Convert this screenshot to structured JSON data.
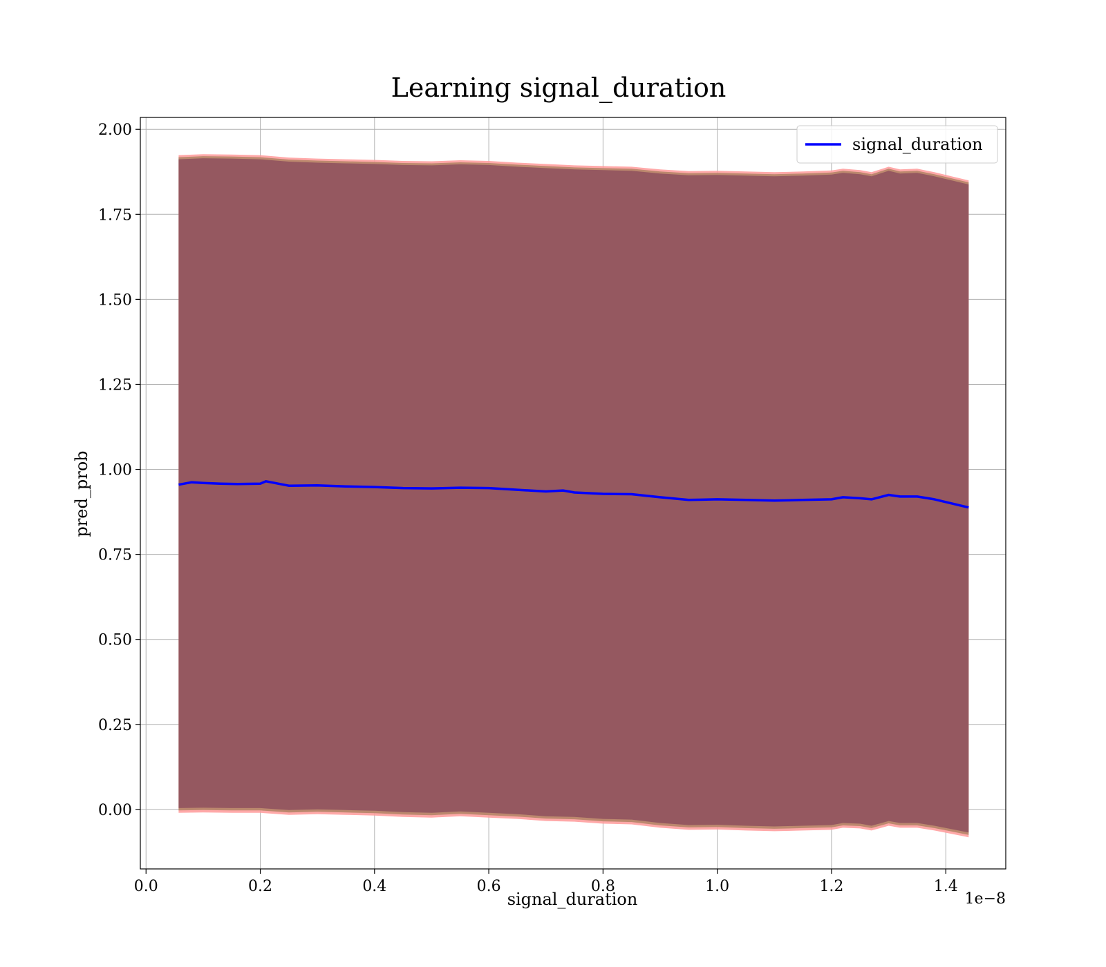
{
  "chart_data": {
    "type": "line",
    "title": "Learning signal_duration",
    "xlabel": "signal_duration",
    "ylabel": "pred_prob",
    "x_offset_label": "1e−8",
    "xlim": [
      -0.01,
      1.505
    ],
    "ylim": [
      -0.175,
      2.035
    ],
    "xticks": [
      0.0,
      0.2,
      0.4,
      0.6,
      0.8,
      1.0,
      1.2,
      1.4
    ],
    "xtick_labels": [
      "0.0",
      "0.2",
      "0.4",
      "0.6",
      "0.8",
      "1.0",
      "1.2",
      "1.4"
    ],
    "yticks": [
      0.0,
      0.25,
      0.5,
      0.75,
      1.0,
      1.25,
      1.5,
      1.75,
      2.0
    ],
    "ytick_labels": [
      "0.00",
      "0.25",
      "0.50",
      "0.75",
      "1.00",
      "1.25",
      "1.50",
      "1.75",
      "2.00"
    ],
    "grid": true,
    "legend_position": "top-right",
    "colors": {
      "line": "#0000ff",
      "band_inner": "#8b4a5c",
      "band_mid": "#b8866a",
      "band_outer": "#ff9a9a"
    },
    "series": [
      {
        "name": "signal_duration",
        "x": [
          0.057,
          0.08,
          0.1,
          0.13,
          0.16,
          0.2,
          0.21,
          0.25,
          0.3,
          0.35,
          0.4,
          0.45,
          0.5,
          0.55,
          0.6,
          0.65,
          0.7,
          0.73,
          0.75,
          0.8,
          0.85,
          0.9,
          0.95,
          1.0,
          1.05,
          1.1,
          1.15,
          1.2,
          1.22,
          1.25,
          1.27,
          1.3,
          1.32,
          1.35,
          1.38,
          1.41,
          1.44
        ],
        "y": [
          0.955,
          0.962,
          0.96,
          0.958,
          0.957,
          0.958,
          0.965,
          0.952,
          0.953,
          0.95,
          0.948,
          0.945,
          0.944,
          0.946,
          0.945,
          0.94,
          0.935,
          0.938,
          0.932,
          0.928,
          0.927,
          0.918,
          0.91,
          0.912,
          0.91,
          0.908,
          0.91,
          0.912,
          0.918,
          0.915,
          0.912,
          0.925,
          0.92,
          0.92,
          0.912,
          0.9,
          0.888
        ]
      }
    ],
    "band": {
      "x": [
        0.057,
        0.1,
        0.15,
        0.2,
        0.25,
        0.3,
        0.35,
        0.4,
        0.45,
        0.5,
        0.55,
        0.6,
        0.65,
        0.7,
        0.75,
        0.8,
        0.85,
        0.9,
        0.95,
        1.0,
        1.05,
        1.1,
        1.15,
        1.2,
        1.22,
        1.25,
        1.27,
        1.3,
        1.32,
        1.35,
        1.38,
        1.41,
        1.44
      ],
      "upper": [
        1.912,
        1.915,
        1.914,
        1.912,
        1.905,
        1.902,
        1.9,
        1.898,
        1.895,
        1.894,
        1.897,
        1.895,
        1.89,
        1.886,
        1.882,
        1.88,
        1.878,
        1.87,
        1.865,
        1.866,
        1.864,
        1.862,
        1.864,
        1.867,
        1.872,
        1.868,
        1.862,
        1.878,
        1.87,
        1.872,
        1.862,
        1.85,
        1.838
      ],
      "lower": [
        0.004,
        0.005,
        0.004,
        0.004,
        -0.002,
        0.0,
        -0.002,
        -0.004,
        -0.008,
        -0.01,
        -0.006,
        -0.01,
        -0.014,
        -0.02,
        -0.022,
        -0.028,
        -0.03,
        -0.04,
        -0.046,
        -0.045,
        -0.048,
        -0.05,
        -0.048,
        -0.046,
        -0.04,
        -0.042,
        -0.048,
        -0.034,
        -0.04,
        -0.04,
        -0.048,
        -0.058,
        -0.068
      ]
    }
  }
}
